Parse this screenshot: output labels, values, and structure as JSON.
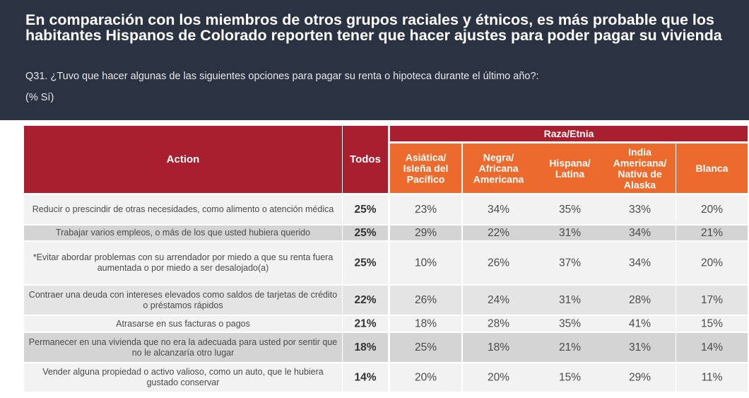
{
  "header": {
    "title": "En comparación con los miembros de otros grupos raciales y étnicos, es más probable que los habitantes Hispanos de Colorado reporten tener que hacer ajustes para poder pagar su vivienda",
    "question": "Q31. ¿Tuvo que hacer algunas de las siguientes opciones para pagar su renta o hipoteca durante el último año?:",
    "unit": "(% Sí)"
  },
  "colors": {
    "header_bg": "#2b3342",
    "red": "#a8202f",
    "orange": "#ec6a2c",
    "row_a": "#f2f2f2",
    "row_b": "#d4d4d4",
    "row_c": "#e4e4e4"
  },
  "chart_data": {
    "type": "table",
    "title": "En comparación con los miembros de otros grupos raciales y étnicos, es más probable que los habitantes Hispanos de Colorado reporten tener que hacer ajustes para poder pagar su vivienda",
    "row_header": "Action",
    "total_header": "Todos",
    "group_header": "Raza/Etnia",
    "columns": [
      [
        "Asiática/",
        "Isleña del",
        "Pacífico"
      ],
      [
        "Negra/",
        "Africana",
        "Americana"
      ],
      [
        "Hispana/",
        "Latina"
      ],
      [
        "India",
        "Americana/",
        "Nativa de",
        "Alaska"
      ],
      [
        "Blanca"
      ]
    ],
    "rows": [
      {
        "label": "Reducir o prescindir de otras necesidades, como alimento o atención médica",
        "todos": "25%",
        "values": [
          "23%",
          "34%",
          "35%",
          "33%",
          "20%"
        ]
      },
      {
        "label": "Trabajar varios empleos, o más de los que usted hubiera querido",
        "todos": "25%",
        "values": [
          "29%",
          "22%",
          "31%",
          "34%",
          "21%"
        ]
      },
      {
        "label": "*Evitar abordar problemas con su arrendador por miedo a que su renta fuera aumentada o por miedo a ser desalojado(a)",
        "todos": "25%",
        "values": [
          "10%",
          "26%",
          "37%",
          "34%",
          "20%"
        ]
      },
      {
        "label": "Contraer una deuda con intereses elevados como saldos de tarjetas de crédito o préstamos rápidos",
        "todos": "22%",
        "values": [
          "26%",
          "24%",
          "31%",
          "28%",
          "17%"
        ]
      },
      {
        "label": "Atrasarse en sus facturas o pagos",
        "todos": "21%",
        "values": [
          "18%",
          "28%",
          "35%",
          "41%",
          "15%"
        ]
      },
      {
        "label": "Permanecer en una vivienda que no era la adecuada para usted por sentir que no le alcanzaría otro lugar",
        "todos": "18%",
        "values": [
          "25%",
          "18%",
          "21%",
          "31%",
          "14%"
        ]
      },
      {
        "label": "Vender alguna propiedad o activo valioso, como un auto, que le hubiera gustado conservar",
        "todos": "14%",
        "values": [
          "20%",
          "20%",
          "15%",
          "29%",
          "11%"
        ]
      }
    ]
  }
}
